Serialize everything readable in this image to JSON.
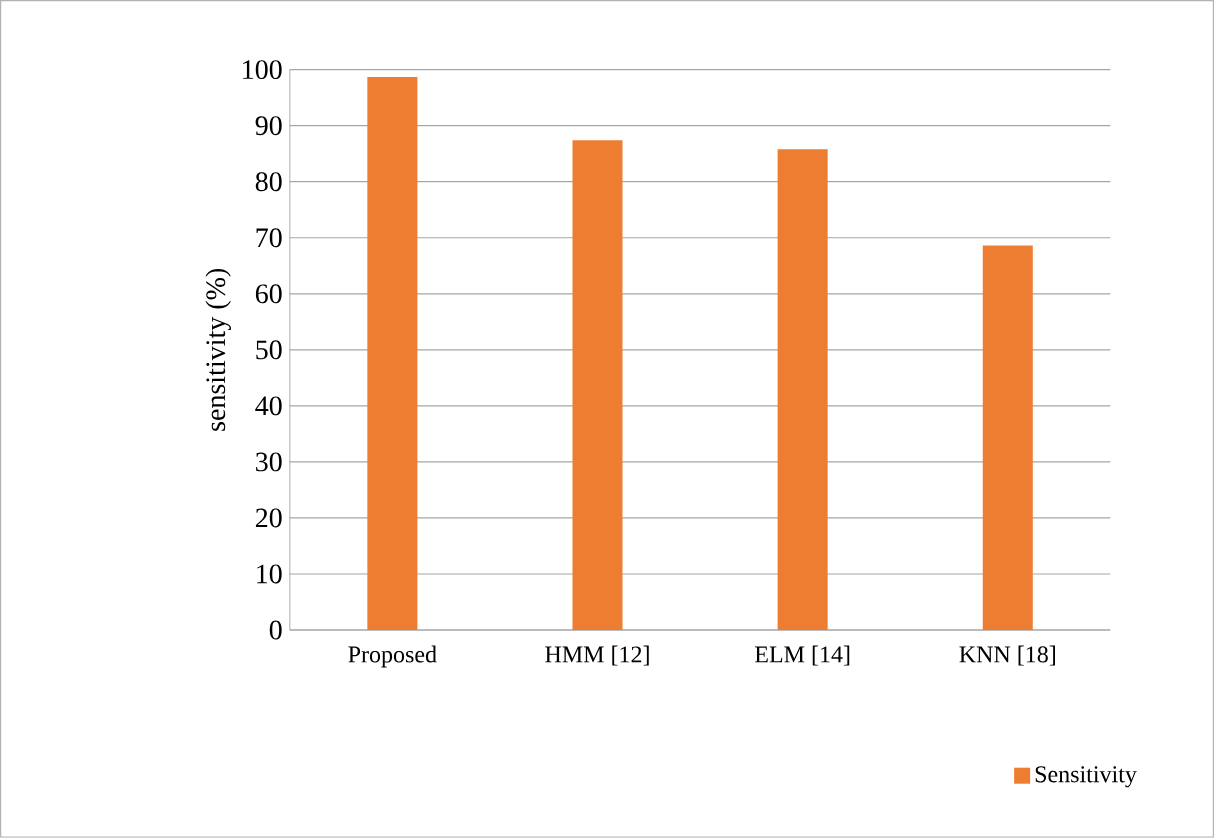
{
  "chart_data": {
    "type": "bar",
    "ylabel": "sensitivity (%)",
    "categories": [
      "Proposed",
      "HMM [12]",
      "ELM [14]",
      "KNN [18]"
    ],
    "series": [
      {
        "name": "Sensitivity",
        "color": "#ed7d31",
        "values": [
          98.7,
          87.4,
          85.8,
          68.6
        ]
      }
    ],
    "ylim": [
      0,
      100
    ],
    "yticks": [
      0,
      10,
      20,
      30,
      40,
      50,
      60,
      70,
      80,
      90,
      100
    ],
    "grid": "y",
    "legend": "bottom right"
  }
}
